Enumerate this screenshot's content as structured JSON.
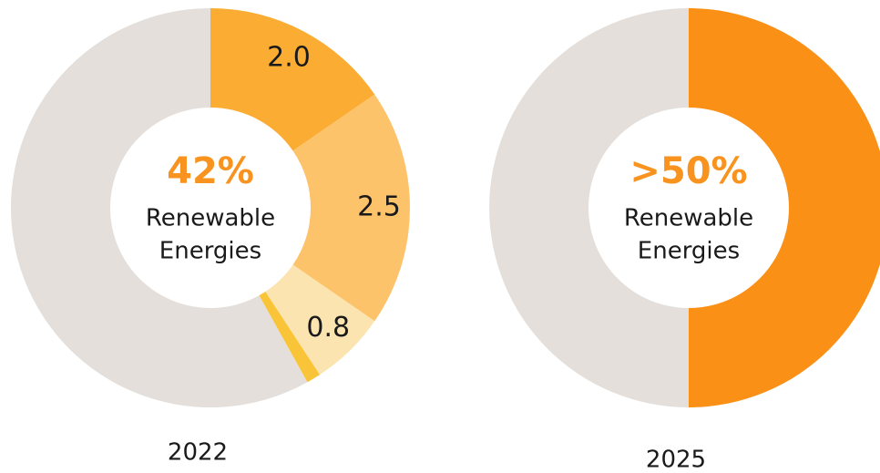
{
  "chart_data": [
    {
      "type": "donut",
      "center_title": "42%",
      "center_lines": [
        "Renewable",
        "Energies"
      ],
      "caption": "2022",
      "values": [
        2.0,
        2.5,
        0.8,
        0.15,
        7.55
      ],
      "value_labels": [
        "2.0",
        "2.5",
        "0.8",
        null,
        null
      ],
      "colors": [
        "#fbac33",
        "#fdc36a",
        "#fbe4b0",
        "#f9c437",
        "#e4dfda"
      ]
    },
    {
      "type": "donut",
      "center_title": ">50%",
      "center_lines": [
        "Renewable",
        "Energies"
      ],
      "caption": "2025",
      "values": [
        50,
        50
      ],
      "colors": [
        "#fb9017",
        "#e4dfda"
      ]
    }
  ]
}
